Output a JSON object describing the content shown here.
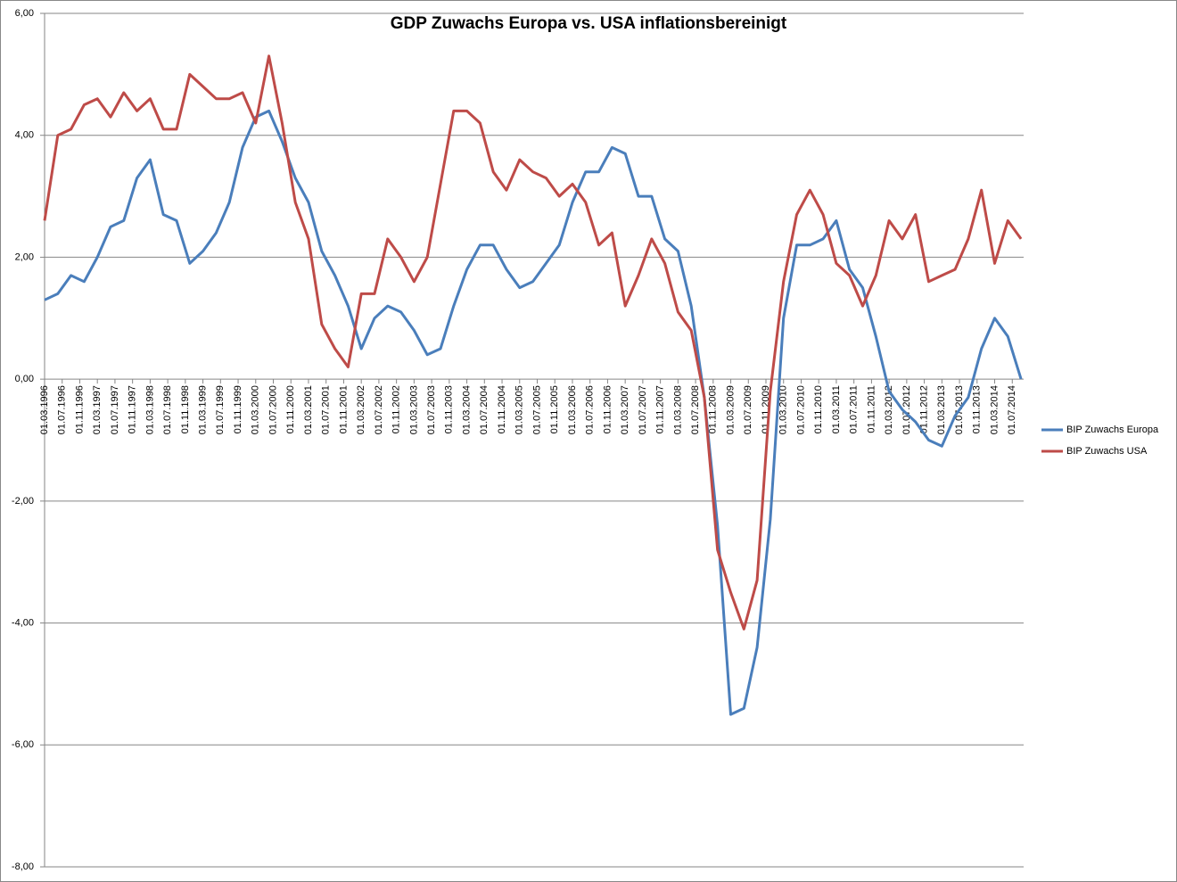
{
  "chart_data": {
    "type": "line",
    "title": "GDP Zuwachs Europa vs. USA inflationsbereinigt",
    "x": [
      "1996-03",
      "1996-06",
      "1996-09",
      "1996-12",
      "1997-03",
      "1997-06",
      "1997-09",
      "1997-12",
      "1998-03",
      "1998-06",
      "1998-09",
      "1998-12",
      "1999-03",
      "1999-06",
      "1999-09",
      "1999-12",
      "2000-03",
      "2000-06",
      "2000-09",
      "2000-12",
      "2001-03",
      "2001-06",
      "2001-09",
      "2001-12",
      "2002-03",
      "2002-06",
      "2002-09",
      "2002-12",
      "2003-03",
      "2003-06",
      "2003-09",
      "2003-12",
      "2004-03",
      "2004-06",
      "2004-09",
      "2004-12",
      "2005-03",
      "2005-06",
      "2005-09",
      "2005-12",
      "2006-03",
      "2006-06",
      "2006-09",
      "2006-12",
      "2007-03",
      "2007-06",
      "2007-09",
      "2007-12",
      "2008-03",
      "2008-06",
      "2008-09",
      "2008-12",
      "2009-03",
      "2009-06",
      "2009-09",
      "2009-12",
      "2010-03",
      "2010-06",
      "2010-09",
      "2010-12",
      "2011-03",
      "2011-06",
      "2011-09",
      "2011-12",
      "2012-03",
      "2012-06",
      "2012-09",
      "2012-12",
      "2013-03",
      "2013-06",
      "2013-09",
      "2013-12",
      "2014-03",
      "2014-06",
      "2014-09"
    ],
    "series": [
      {
        "name": "BIP Zuwachs Europa",
        "color": "#4a7ebb",
        "values": [
          1.3,
          1.4,
          1.7,
          1.6,
          2.0,
          2.5,
          2.6,
          3.3,
          3.6,
          2.7,
          2.6,
          1.9,
          2.1,
          2.4,
          2.9,
          3.8,
          4.3,
          4.4,
          3.9,
          3.3,
          2.9,
          2.1,
          1.7,
          1.2,
          0.5,
          1.0,
          1.2,
          1.1,
          0.8,
          0.4,
          0.5,
          1.2,
          1.8,
          2.2,
          2.2,
          1.8,
          1.5,
          1.6,
          1.9,
          2.2,
          2.9,
          3.4,
          3.4,
          3.8,
          3.7,
          3.0,
          3.0,
          2.3,
          2.1,
          1.2,
          -0.3,
          -2.4,
          -5.5,
          -5.4,
          -4.4,
          -2.3,
          1.0,
          2.2,
          2.2,
          2.3,
          2.6,
          1.8,
          1.5,
          0.7,
          -0.2,
          -0.5,
          -0.7,
          -1.0,
          -1.1,
          -0.6,
          -0.3,
          0.5,
          1.0,
          0.7,
          0.0
        ]
      },
      {
        "name": "BIP Zuwachs USA",
        "color": "#be4b48",
        "values": [
          2.6,
          4.0,
          4.1,
          4.5,
          4.6,
          4.3,
          4.7,
          4.4,
          4.6,
          4.1,
          4.1,
          5.0,
          4.8,
          4.6,
          4.6,
          4.7,
          4.2,
          5.3,
          4.2,
          2.9,
          2.3,
          0.9,
          0.5,
          0.2,
          1.4,
          1.4,
          2.3,
          2.0,
          1.6,
          2.0,
          3.2,
          4.4,
          4.4,
          4.2,
          3.4,
          3.1,
          3.6,
          3.4,
          3.3,
          3.0,
          3.2,
          2.9,
          2.2,
          2.4,
          1.2,
          1.7,
          2.3,
          1.9,
          1.1,
          0.8,
          -0.3,
          -2.8,
          -3.5,
          -4.1,
          -3.3,
          -0.2,
          1.6,
          2.7,
          3.1,
          2.7,
          1.9,
          1.7,
          1.2,
          1.7,
          2.6,
          2.3,
          2.7,
          1.6,
          1.7,
          1.8,
          2.3,
          3.1,
          1.9,
          2.6,
          2.3
        ]
      }
    ],
    "xticks": [
      {
        "value": "1996-03",
        "label": "01.03.1996"
      },
      {
        "value": "1996-07",
        "label": "01.07.1996"
      },
      {
        "value": "1996-11",
        "label": "01.11.1996"
      },
      {
        "value": "1997-03",
        "label": "01.03.1997"
      },
      {
        "value": "1997-07",
        "label": "01.07.1997"
      },
      {
        "value": "1997-11",
        "label": "01.11.1997"
      },
      {
        "value": "1998-03",
        "label": "01.03.1998"
      },
      {
        "value": "1998-07",
        "label": "01.07.1998"
      },
      {
        "value": "1998-11",
        "label": "01.11.1998"
      },
      {
        "value": "1999-03",
        "label": "01.03.1999"
      },
      {
        "value": "1999-07",
        "label": "01.07.1999"
      },
      {
        "value": "1999-11",
        "label": "01.11.1999"
      },
      {
        "value": "2000-03",
        "label": "01.03.2000"
      },
      {
        "value": "2000-07",
        "label": "01.07.2000"
      },
      {
        "value": "2000-11",
        "label": "01.11.2000"
      },
      {
        "value": "2001-03",
        "label": "01.03.2001"
      },
      {
        "value": "2001-07",
        "label": "01.07.2001"
      },
      {
        "value": "2001-11",
        "label": "01.11.2001"
      },
      {
        "value": "2002-03",
        "label": "01.03.2002"
      },
      {
        "value": "2002-07",
        "label": "01.07.2002"
      },
      {
        "value": "2002-11",
        "label": "01.11.2002"
      },
      {
        "value": "2003-03",
        "label": "01.03.2003"
      },
      {
        "value": "2003-07",
        "label": "01.07.2003"
      },
      {
        "value": "2003-11",
        "label": "01.11.2003"
      },
      {
        "value": "2004-03",
        "label": "01.03.2004"
      },
      {
        "value": "2004-07",
        "label": "01.07.2004"
      },
      {
        "value": "2004-11",
        "label": "01.11.2004"
      },
      {
        "value": "2005-03",
        "label": "01.03.2005"
      },
      {
        "value": "2005-07",
        "label": "01.07.2005"
      },
      {
        "value": "2005-11",
        "label": "01.11.2005"
      },
      {
        "value": "2006-03",
        "label": "01.03.2006"
      },
      {
        "value": "2006-07",
        "label": "01.07.2006"
      },
      {
        "value": "2006-11",
        "label": "01.11.2006"
      },
      {
        "value": "2007-03",
        "label": "01.03.2007"
      },
      {
        "value": "2007-07",
        "label": "01.07.2007"
      },
      {
        "value": "2007-11",
        "label": "01.11.2007"
      },
      {
        "value": "2008-03",
        "label": "01.03.2008"
      },
      {
        "value": "2008-07",
        "label": "01.07.2008"
      },
      {
        "value": "2008-11",
        "label": "01.11.2008"
      },
      {
        "value": "2009-03",
        "label": "01.03.2009"
      },
      {
        "value": "2009-07",
        "label": "01.07.2009"
      },
      {
        "value": "2009-11",
        "label": "01.11.2009"
      },
      {
        "value": "2010-03",
        "label": "01.03.2010"
      },
      {
        "value": "2010-07",
        "label": "01.07.2010"
      },
      {
        "value": "2010-11",
        "label": "01.11.2010"
      },
      {
        "value": "2011-03",
        "label": "01.03.2011"
      },
      {
        "value": "2011-07",
        "label": "01.07.2011"
      },
      {
        "value": "2011-11",
        "label": "01.11.2011"
      },
      {
        "value": "2012-03",
        "label": "01.03.2012"
      },
      {
        "value": "2012-07",
        "label": "01.07.2012"
      },
      {
        "value": "2012-11",
        "label": "01.11.2012"
      },
      {
        "value": "2013-03",
        "label": "01.03.2013"
      },
      {
        "value": "2013-07",
        "label": "01.07.2013"
      },
      {
        "value": "2013-11",
        "label": "01.11.2013"
      },
      {
        "value": "2014-03",
        "label": "01.03.2014"
      },
      {
        "value": "2014-07",
        "label": "01.07.2014"
      }
    ],
    "ylim": [
      -8,
      6
    ],
    "yticks": [
      {
        "value": -8,
        "label": "-8,00"
      },
      {
        "value": -6,
        "label": "-6,00"
      },
      {
        "value": -4,
        "label": "-4,00"
      },
      {
        "value": -2,
        "label": "-2,00"
      },
      {
        "value": 0,
        "label": "0,00"
      },
      {
        "value": 2,
        "label": "2,00"
      },
      {
        "value": 4,
        "label": "4,00"
      },
      {
        "value": 6,
        "label": "6,00"
      }
    ],
    "grid": true,
    "legend": "right"
  }
}
